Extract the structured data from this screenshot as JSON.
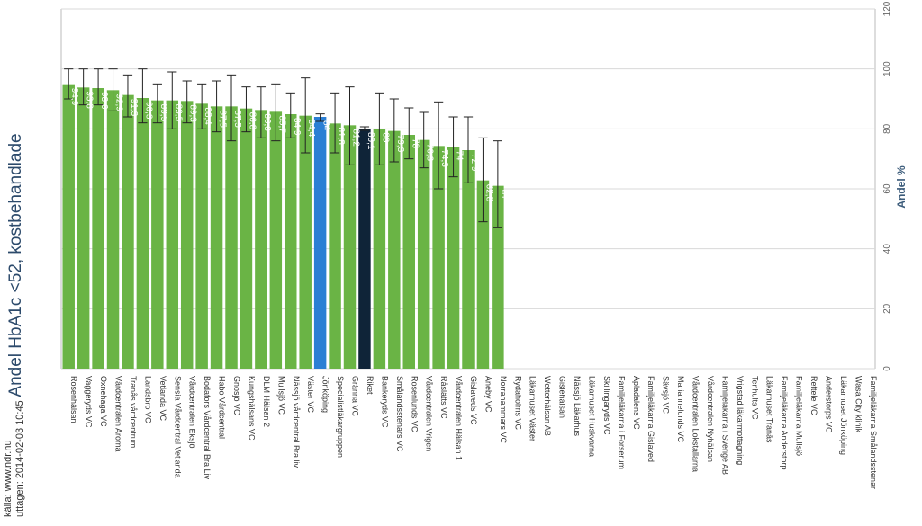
{
  "chart_data": {
    "type": "bar",
    "title": "Andel HbA1c <52, kostbehandlade",
    "source_line1": "källa: www.ndr.nu",
    "source_line2": "uttagen: 2014-02-03 10:45",
    "ylabel": "Andel %",
    "ylim": [
      0,
      120
    ],
    "yticks": [
      0,
      20,
      40,
      60,
      80,
      100,
      120
    ],
    "orientation": "vertical-rotated-page",
    "grid": true,
    "colors": {
      "default": "#6ab445",
      "highlight": "#2b7fd4",
      "national": "#0f2438",
      "error": "#222222",
      "grid": "#d8d8d8"
    },
    "categories": [
      "Rosenhälsan",
      "Vaggeryds VC",
      "Oxnehaga VC",
      "Vårdcentralen Aroma",
      "Tranås vårdcentrum",
      "Landsbro VC",
      "Vetlanda VC",
      "Sensia Vårdcentral Vetlanda",
      "Vårdcentralen Eksjö",
      "Bodafors Vårdcentral Bra Liv",
      "Habo Vårdcentral",
      "Gnosjö VC",
      "Kungshälsans VC",
      "DLM Hälsan 2",
      "Mullsjö VC",
      "Nässjö vårdcentral Bra liv",
      "Väster VC",
      "Jönköping",
      "Specialistläkargruppen",
      "Gränna VC",
      "Riket",
      "Bankeryds VC",
      "Smålandsstenars VC",
      "Rosenlunds VC",
      "Vårdcentralen Vrigen",
      "Råslätts VC",
      "Vårdcentralen Hälsan 1",
      "Gislaveds VC",
      "Aneby VC",
      "Norrahammars VC",
      "Rydaholms VC",
      "Läkarhuset Väster",
      "Wetterhälsan AB",
      "Gislehälsan",
      "Nässjö Läkarhus",
      "Läkarhuset Huskvarna",
      "Skillingaryds VC",
      "Familjeläkarna i Forserum",
      "Apladalens VC",
      "Familjeläkarna Gislaved",
      "Sävsjö VC",
      "Mariannelunds VC",
      "Vårdcentralen Lokstallarna",
      "Vårdcentralen Nyhälsan",
      "Familjeläkarna i Sverige AB",
      "Vrigstad läkarmottagning",
      "Tenhults VC",
      "Läkarhuset Tranås",
      "Familjeläkarna Anderstorp",
      "Familjeläkarna Mullsjö",
      "Reftele VC",
      "Anderstorps VC",
      "Läkarhuset Jönköping",
      "Wasa City klinik",
      "Familjeläkarna Smålandsstenar"
    ],
    "values": [
      94.9,
      93.8,
      93.6,
      92.9,
      91.3,
      90.3,
      89.5,
      89.5,
      89.3,
      88.4,
      87.5,
      87.5,
      86.8,
      86.3,
      85.7,
      84.9,
      84.4,
      84,
      81.8,
      81.2,
      80.1,
      80,
      79.3,
      78,
      76.3,
      74.3,
      74,
      72.9,
      62.8,
      61,
      null,
      null,
      null,
      null,
      null,
      null,
      null,
      null,
      null,
      null,
      null,
      null,
      null,
      null,
      null,
      null,
      null,
      null,
      null,
      null,
      null,
      null,
      null,
      null,
      null
    ],
    "value_labels": [
      "94,9",
      "93,8",
      "93,6",
      "92,9",
      "91,3",
      "90,3",
      "89,5",
      "89,5",
      "89,3",
      "88,4",
      "87,5",
      "87,5",
      "86,8",
      "86,3",
      "85,7",
      "84,9",
      "84,4",
      "84",
      "81,8",
      "81,2",
      "80,1",
      "80",
      "79,3",
      "78",
      "76,3",
      "74,3",
      "74",
      "72,9",
      "62,8",
      "61",
      "",
      "",
      "",
      "",
      "",
      "",
      "",
      "",
      "",
      "",
      "",
      "",
      "",
      "",
      "",
      "",
      "",
      "",
      "",
      "",
      "",
      "",
      "",
      "",
      ""
    ],
    "error_low": [
      90,
      88,
      88,
      86,
      84,
      82,
      82,
      80,
      82,
      80,
      79,
      76,
      79,
      77,
      76,
      77,
      72,
      82.5,
      72,
      68,
      79.5,
      68,
      69,
      70,
      67,
      60,
      64,
      62,
      49,
      47,
      null,
      null,
      null,
      null,
      null,
      null,
      null,
      null,
      null,
      null,
      null,
      null,
      null,
      null,
      null,
      null,
      null,
      null,
      null,
      null,
      null,
      null,
      null,
      null,
      null
    ],
    "error_high": [
      100,
      100,
      100,
      100,
      98,
      100,
      95,
      99,
      96,
      95,
      96,
      98,
      94,
      94,
      95,
      92,
      97,
      85,
      92,
      94,
      80.7,
      92,
      90,
      87,
      85.5,
      89,
      84,
      84,
      77,
      76,
      null,
      null,
      null,
      null,
      null,
      null,
      null,
      null,
      null,
      null,
      null,
      null,
      null,
      null,
      null,
      null,
      null,
      null,
      null,
      null,
      null,
      null,
      null,
      null,
      null
    ],
    "highlight_categories": [
      "Jönköping"
    ],
    "national_categories": [
      "Riket"
    ]
  }
}
